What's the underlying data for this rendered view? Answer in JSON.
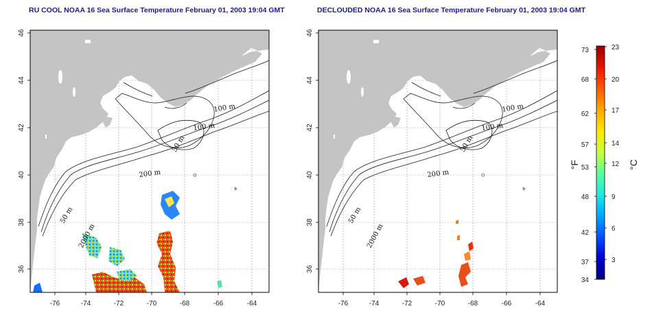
{
  "maps": [
    {
      "title": "RU COOL NOAA 16 Sea Surface Temperature February 01, 2003 19:04 GMT",
      "contour_labels": [
        "100 m",
        "100 m",
        "50 m",
        "200 m",
        "50 m",
        "2000 m"
      ]
    },
    {
      "title": "DECLOUDED NOAA 16 Sea Surface Temperature February 01, 2003 19:04 GMT",
      "contour_labels": [
        "100 m",
        "100 m",
        "50 m",
        "200 m",
        "50 m",
        "2000 m"
      ]
    }
  ],
  "axes": {
    "lon_ticks": [
      "-76",
      "-74",
      "-72",
      "-70",
      "-68",
      "-66",
      "-64"
    ],
    "lat_ticks": [
      "46",
      "44",
      "42",
      "40",
      "38",
      "36"
    ]
  },
  "colorbar": {
    "f_unit": "°F",
    "c_unit": "°C",
    "f_ticks": [
      "73",
      "68",
      "62",
      "57",
      "53",
      "48",
      "42",
      "37",
      "34"
    ],
    "c_ticks": [
      "23",
      "20",
      "17",
      "14",
      "12",
      "9",
      "6",
      "3"
    ],
    "colors": [
      "#00007a",
      "#0000d0",
      "#0050ff",
      "#00a8ff",
      "#1fe8e0",
      "#5cff9a",
      "#c8ff3a",
      "#ffe800",
      "#ffa800",
      "#ff5800",
      "#e81400",
      "#9a0000"
    ]
  },
  "colors": {
    "land": "#c4c4c4",
    "title": "#1b1b8f",
    "grid": "#9a9a9a"
  }
}
